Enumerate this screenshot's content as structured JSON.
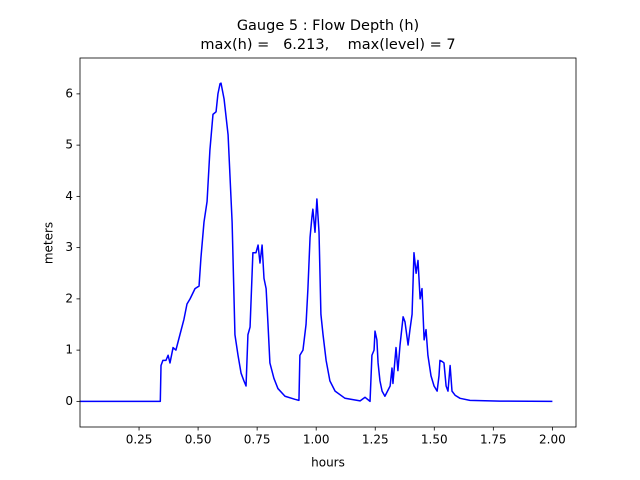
{
  "chart_data": {
    "type": "line",
    "title": "Gauge 5 : Flow Depth (h)",
    "subtitle": "max(h) =   6.213,    max(level) = 7",
    "xlabel": "hours",
    "ylabel": "meters",
    "xlim": [
      0,
      2.1
    ],
    "ylim": [
      -0.5,
      6.7
    ],
    "xticks": [
      0.25,
      {
        "value": 0.5,
        "label": "0.50"
      },
      0.75,
      {
        "value": 1.0,
        "label": "1.00"
      },
      1.25,
      {
        "value": 1.5,
        "label": "1.50"
      },
      1.75,
      {
        "value": 2.0,
        "label": "2.00"
      }
    ],
    "yticks": [
      0,
      1,
      2,
      3,
      4,
      5,
      6
    ],
    "x": [
      0,
      0.34,
      0.343,
      0.351,
      0.364,
      0.373,
      0.381,
      0.394,
      0.406,
      0.423,
      0.44,
      0.453,
      0.466,
      0.487,
      0.504,
      0.512,
      0.525,
      0.538,
      0.55,
      0.563,
      0.576,
      0.584,
      0.593,
      0.597,
      0.61,
      0.627,
      0.644,
      0.656,
      0.669,
      0.682,
      0.694,
      0.703,
      0.711,
      0.72,
      0.732,
      0.745,
      0.754,
      0.762,
      0.771,
      0.779,
      0.788,
      0.796,
      0.804,
      0.821,
      0.838,
      0.868,
      0.91,
      0.927,
      0.931,
      0.944,
      0.957,
      0.965,
      0.974,
      0.982,
      0.986,
      0.995,
      1.003,
      1.012,
      1.02,
      1.029,
      1.042,
      1.058,
      1.08,
      1.122,
      1.186,
      1.207,
      1.228,
      1.236,
      1.245,
      1.249,
      1.257,
      1.262,
      1.27,
      1.279,
      1.291,
      1.313,
      1.321,
      1.325,
      1.338,
      1.346,
      1.355,
      1.368,
      1.376,
      1.389,
      1.397,
      1.406,
      1.414,
      1.423,
      1.431,
      1.44,
      1.448,
      1.457,
      1.465,
      1.473,
      1.486,
      1.499,
      1.512,
      1.52,
      1.524,
      1.533,
      1.541,
      1.55,
      1.558,
      1.567,
      1.575,
      1.588,
      1.609,
      1.651,
      1.778,
      2.0
    ],
    "series": [
      {
        "name": "h",
        "color": "#0000ff",
        "values": [
          0,
          0,
          0.7,
          0.8,
          0.8,
          0.9,
          0.75,
          1.05,
          1.0,
          1.3,
          1.6,
          1.9,
          2.0,
          2.2,
          2.25,
          2.8,
          3.5,
          3.9,
          4.9,
          5.6,
          5.65,
          6.0,
          6.2,
          6.21,
          5.9,
          5.2,
          3.5,
          1.3,
          0.9,
          0.55,
          0.4,
          0.3,
          1.3,
          1.45,
          2.9,
          2.9,
          3.05,
          2.7,
          3.05,
          2.4,
          2.2,
          1.5,
          0.75,
          0.45,
          0.25,
          0.1,
          0.04,
          0.02,
          0.9,
          1.0,
          1.5,
          2.2,
          3.2,
          3.6,
          3.75,
          3.3,
          3.95,
          3.3,
          1.7,
          1.3,
          0.8,
          0.4,
          0.2,
          0.06,
          0.01,
          0.08,
          0,
          0.9,
          1.0,
          1.37,
          1.2,
          0.75,
          0.4,
          0.2,
          0.1,
          0.3,
          0.65,
          0.35,
          1.05,
          0.6,
          1.1,
          1.65,
          1.55,
          1.1,
          1.4,
          1.7,
          2.9,
          2.5,
          2.75,
          2.0,
          2.2,
          1.2,
          1.4,
          0.9,
          0.5,
          0.3,
          0.2,
          0.5,
          0.8,
          0.78,
          0.75,
          0.3,
          0.2,
          0.7,
          0.2,
          0.12,
          0.06,
          0.02,
          0.005,
          0
        ]
      }
    ]
  }
}
